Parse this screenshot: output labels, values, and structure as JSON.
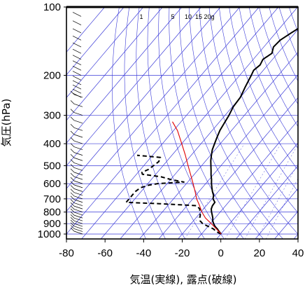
{
  "chart_data": {
    "type": "line",
    "chart_kind": "skew-T log-P sounding",
    "xlabel": "気温(実線), 露点(破線)",
    "ylabel": "気圧(hPa)",
    "x_ticks": [
      -80,
      -60,
      -40,
      -20,
      0,
      20,
      40
    ],
    "y_ticks": [
      100,
      200,
      300,
      400,
      500,
      600,
      700,
      800,
      900,
      1000
    ],
    "xlim": [
      -80,
      40
    ],
    "ylim": [
      1050,
      100
    ],
    "y_scale": "log",
    "mixing_ratio_labels": [
      "1",
      "5",
      "10",
      "15",
      "20g"
    ],
    "colors": {
      "temperature": "#000000",
      "dewpoint": "#000000",
      "parcel": "#e00000",
      "isotherms": "#3a3ad8",
      "adiabats": "#3a3ad8",
      "isobars": "#3a3ad8",
      "wind_barbs": "#000000"
    },
    "series": [
      {
        "name": "temperature",
        "style": "solid",
        "points": [
          [
            1000,
            0.2
          ],
          [
            975,
            -2.0
          ],
          [
            950,
            -4.0
          ],
          [
            925,
            -6.5
          ],
          [
            900,
            -8.3
          ],
          [
            875,
            -10.0
          ],
          [
            850,
            -11.2
          ],
          [
            825,
            -12.8
          ],
          [
            800,
            -14.5
          ],
          [
            775,
            -16.0
          ],
          [
            750,
            -16.8
          ],
          [
            725,
            -17.0
          ],
          [
            700,
            -19.5
          ],
          [
            675,
            -20.8
          ],
          [
            650,
            -23.0
          ],
          [
            625,
            -25.0
          ],
          [
            600,
            -27.0
          ],
          [
            575,
            -28.8
          ],
          [
            550,
            -31.0
          ],
          [
            525,
            -33.0
          ],
          [
            500,
            -35.2
          ],
          [
            475,
            -37.5
          ],
          [
            450,
            -39.5
          ],
          [
            425,
            -41.5
          ],
          [
            400,
            -43.0
          ],
          [
            375,
            -44.5
          ],
          [
            350,
            -46.0
          ],
          [
            325,
            -47.0
          ],
          [
            300,
            -48.0
          ],
          [
            275,
            -49.5
          ],
          [
            250,
            -50.0
          ],
          [
            225,
            -52.0
          ],
          [
            200,
            -54.0
          ],
          [
            190,
            -55.0
          ],
          [
            180,
            -54.0
          ],
          [
            170,
            -55.0
          ],
          [
            160,
            -53.0
          ],
          [
            150,
            -55.0
          ],
          [
            140,
            -54.5
          ],
          [
            130,
            -52.0
          ],
          [
            120,
            -49.0
          ],
          [
            115,
            -45.0
          ],
          [
            110,
            -44.0
          ],
          [
            105,
            -46.0
          ],
          [
            100,
            -47.0
          ]
        ]
      },
      {
        "name": "dewpoint",
        "style": "dashed",
        "points": [
          [
            1000,
            0.0
          ],
          [
            975,
            -3.5
          ],
          [
            950,
            -6.0
          ],
          [
            925,
            -10.0
          ],
          [
            900,
            -14.0
          ],
          [
            875,
            -16.5
          ],
          [
            850,
            -18.0
          ],
          [
            825,
            -19.0
          ],
          [
            800,
            -20.5
          ],
          [
            775,
            -22.0
          ],
          [
            750,
            -25.0
          ],
          [
            735,
            -45.0
          ],
          [
            730,
            -55.0
          ],
          [
            725,
            -63.0
          ],
          [
            700,
            -63.0
          ],
          [
            675,
            -63.0
          ],
          [
            650,
            -63.0
          ],
          [
            625,
            -62.0
          ],
          [
            610,
            -59.0
          ],
          [
            600,
            -55.0
          ],
          [
            590,
            -42.0
          ],
          [
            575,
            -50.0
          ],
          [
            560,
            -56.0
          ],
          [
            545,
            -67.0
          ],
          [
            535,
            -68.0
          ],
          [
            520,
            -66.0
          ],
          [
            500,
            -65.0
          ],
          [
            480,
            -64.0
          ],
          [
            460,
            -65.0
          ],
          [
            450,
            -78.0
          ]
        ]
      },
      {
        "name": "parcel",
        "style": "solid-red",
        "points": [
          [
            1000,
            0.2
          ],
          [
            950,
            -4.5
          ],
          [
            900,
            -9.5
          ],
          [
            850,
            -15.0
          ],
          [
            800,
            -19.5
          ],
          [
            750,
            -23.5
          ],
          [
            700,
            -28.0
          ],
          [
            650,
            -32.0
          ],
          [
            600,
            -36.5
          ],
          [
            550,
            -41.5
          ],
          [
            500,
            -47.0
          ],
          [
            450,
            -53.0
          ],
          [
            400,
            -60.0
          ],
          [
            350,
            -68.0
          ],
          [
            320,
            -74.5
          ]
        ]
      }
    ]
  }
}
